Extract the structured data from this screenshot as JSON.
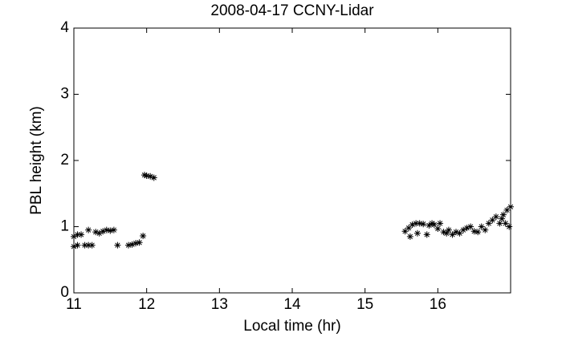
{
  "chart_data": {
    "type": "scatter",
    "title": "2008-04-17 CCNY-Lidar",
    "x_label": "Local time (hr)",
    "y_label": "PBL height (km)",
    "color": "#000000",
    "marker": "asterisk",
    "xlim": [
      11,
      17
    ],
    "xticks": [
      11,
      12,
      13,
      14,
      15,
      16
    ],
    "ylim": [
      0,
      4
    ],
    "yticks": [
      0,
      1,
      2,
      3,
      4
    ],
    "x": [
      11.0,
      11.0,
      11.05,
      11.05,
      11.1,
      11.15,
      11.2,
      11.2,
      11.25,
      11.3,
      11.35,
      11.4,
      11.45,
      11.5,
      11.55,
      11.6,
      11.75,
      11.8,
      11.85,
      11.9,
      11.95,
      11.97,
      12.0,
      12.05,
      12.1,
      15.55,
      15.6,
      15.62,
      15.65,
      15.7,
      15.72,
      15.75,
      15.8,
      15.85,
      15.88,
      15.92,
      15.95,
      16.0,
      16.03,
      16.08,
      16.12,
      16.15,
      16.2,
      16.25,
      16.3,
      16.35,
      16.4,
      16.45,
      16.5,
      16.55,
      16.6,
      16.65,
      16.7,
      16.75,
      16.8,
      16.85,
      16.88,
      16.9,
      16.93,
      16.95,
      16.98,
      17.0
    ],
    "values": [
      0.7,
      0.85,
      0.88,
      0.72,
      0.88,
      0.72,
      0.72,
      0.95,
      0.72,
      0.92,
      0.9,
      0.93,
      0.95,
      0.94,
      0.95,
      0.72,
      0.72,
      0.73,
      0.75,
      0.76,
      0.86,
      1.78,
      1.77,
      1.76,
      1.74,
      0.93,
      0.98,
      0.85,
      1.03,
      1.05,
      0.9,
      1.05,
      1.04,
      0.88,
      1.02,
      1.05,
      1.03,
      0.97,
      1.05,
      0.92,
      0.9,
      0.95,
      0.88,
      0.92,
      0.9,
      0.95,
      0.98,
      1.0,
      0.93,
      0.92,
      1.0,
      0.95,
      1.05,
      1.1,
      1.15,
      1.05,
      1.12,
      1.18,
      1.05,
      1.25,
      1.0,
      1.3
    ]
  }
}
